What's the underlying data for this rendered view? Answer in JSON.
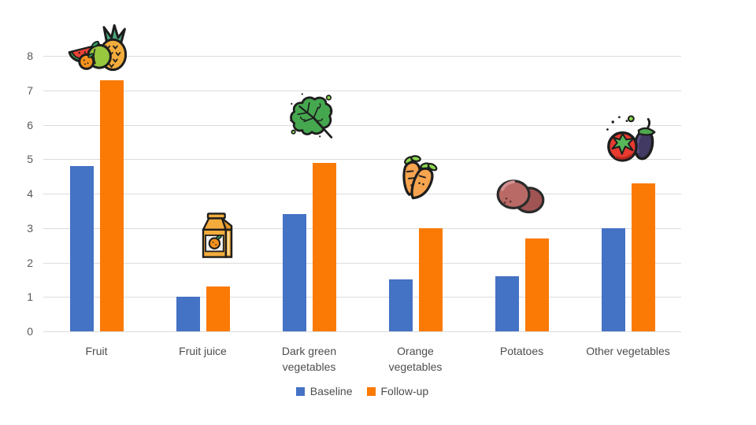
{
  "chart_data": {
    "type": "bar",
    "title": "",
    "xlabel": "",
    "ylabel": "",
    "categories": [
      "Fruit",
      "Fruit juice",
      "Dark green vegetables",
      "Orange vegetables",
      "Potatoes",
      "Other vegetables"
    ],
    "xtick_labels": [
      "Fruit",
      "Fruit juice",
      "Dark green\nvegetables",
      "Orange\nvegetables",
      "Potatoes",
      "Other vegetables"
    ],
    "series": [
      {
        "name": "Baseline",
        "color": "#4472C4",
        "values": [
          4.8,
          1.0,
          3.4,
          1.5,
          1.6,
          3.0
        ]
      },
      {
        "name": "Follow-up",
        "color": "#FA7A05",
        "values": [
          7.3,
          1.3,
          4.9,
          3.0,
          2.7,
          4.3
        ]
      }
    ],
    "ylim": [
      0,
      8
    ],
    "yticks": [
      0,
      1,
      2,
      3,
      4,
      5,
      6,
      7,
      8
    ],
    "grid": "horizontal",
    "legend_position": "bottom",
    "category_icons": [
      "fruit-icon",
      "juice-carton-icon",
      "kale-leaf-icon",
      "carrots-icon",
      "potatoes-icon",
      "tomato-eggplant-icon"
    ]
  },
  "style": {
    "background": "#ffffff",
    "gridline_color": "#DCDCDC",
    "tick_label_color": "#595959",
    "category_label_color": "#4d4d4d"
  }
}
